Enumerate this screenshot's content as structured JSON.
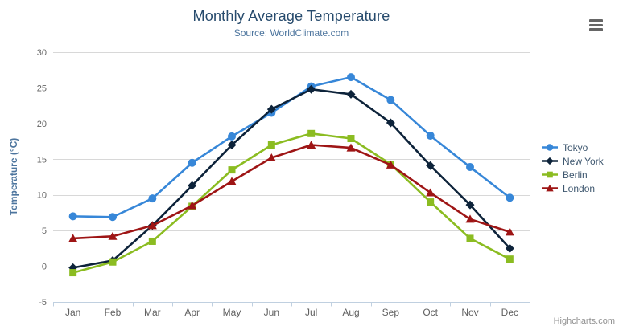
{
  "chart_data": {
    "type": "line",
    "title": "Monthly Average Temperature",
    "subtitle": "Source: WorldClimate.com",
    "categories": [
      "Jan",
      "Feb",
      "Mar",
      "Apr",
      "May",
      "Jun",
      "Jul",
      "Aug",
      "Sep",
      "Oct",
      "Nov",
      "Dec"
    ],
    "series": [
      {
        "name": "Tokyo",
        "color": "#3787d8",
        "marker": "circle",
        "values": [
          7.0,
          6.9,
          9.5,
          14.5,
          18.2,
          21.5,
          25.2,
          26.5,
          23.3,
          18.3,
          13.9,
          9.6
        ]
      },
      {
        "name": "New York",
        "color": "#0d233a",
        "marker": "diamond",
        "values": [
          -0.2,
          0.8,
          5.7,
          11.3,
          17.0,
          22.0,
          24.8,
          24.1,
          20.1,
          14.1,
          8.6,
          2.5
        ]
      },
      {
        "name": "Berlin",
        "color": "#8bbc21",
        "marker": "square",
        "values": [
          -0.9,
          0.6,
          3.5,
          8.4,
          13.5,
          17.0,
          18.6,
          17.9,
          14.3,
          9.0,
          3.9,
          1.0
        ]
      },
      {
        "name": "London",
        "color": "#9e1515",
        "marker": "triangle",
        "values": [
          3.9,
          4.2,
          5.7,
          8.5,
          11.9,
          15.2,
          17.0,
          16.6,
          14.2,
          10.3,
          6.6,
          4.8
        ]
      }
    ],
    "xlabel": "",
    "ylabel": "Temperature (°C)",
    "ylim": [
      -5,
      30
    ],
    "y_ticks": [
      -5,
      0,
      5,
      10,
      15,
      20,
      25,
      30
    ],
    "grid": true,
    "legend_position": "right"
  },
  "chrome": {
    "credits": "Highcharts.com",
    "export_menu_icon": "hamburger-icon"
  },
  "theme": {
    "title_color": "#274b6d",
    "subtitle_color": "#4d759e",
    "axis_label_color": "#666666",
    "x_label_color": "#606060",
    "axis_title_color": "#4d759e",
    "legend_text_color": "#3e576f",
    "grid_color": "#d8d8d8",
    "axis_line_color": "#c0d0e0",
    "credits_color": "#909090",
    "background": "#ffffff"
  }
}
